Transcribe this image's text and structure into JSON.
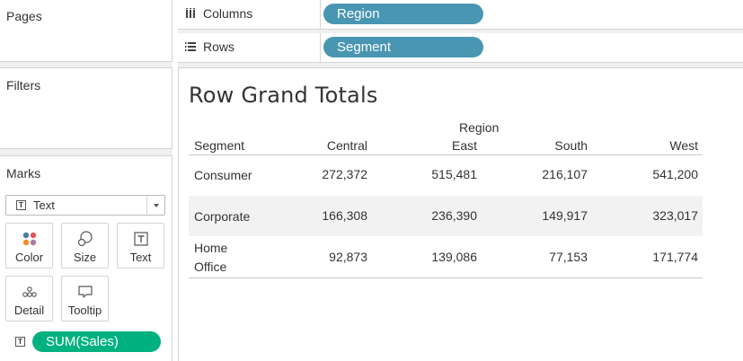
{
  "pages_panel": {
    "title": "Pages"
  },
  "filters_panel": {
    "title": "Filters"
  },
  "marks_panel": {
    "title": "Marks",
    "mark_type": "Text",
    "buttons": [
      {
        "label": "Color",
        "icon": "color-dots-icon"
      },
      {
        "label": "Size",
        "icon": "size-circles-icon"
      },
      {
        "label": "Text",
        "icon": "text-t-icon"
      },
      {
        "label": "Detail",
        "icon": "detail-dots-icon"
      },
      {
        "label": "Tooltip",
        "icon": "tooltip-bubble-icon"
      }
    ],
    "field_pill": "SUM(Sales)"
  },
  "shelves": {
    "columns": {
      "label": "Columns",
      "pill": "Region"
    },
    "rows": {
      "label": "Rows",
      "pill": "Segment"
    }
  },
  "view": {
    "title": "Row Grand Totals",
    "column_group_header": "Region",
    "row_header": "Segment",
    "columns": [
      "Central",
      "East",
      "South",
      "West"
    ],
    "rows": [
      {
        "segment_line1": "Consumer",
        "segment_line2": "",
        "values": [
          "272,372",
          "515,481",
          "216,107",
          "541,200"
        ]
      },
      {
        "segment_line1": "Corporate",
        "segment_line2": "",
        "values": [
          "166,308",
          "236,390",
          "149,917",
          "323,017"
        ]
      },
      {
        "segment_line1": "Home",
        "segment_line2": "Office",
        "values": [
          "92,873",
          "139,086",
          "77,153",
          "171,774"
        ]
      }
    ]
  },
  "colors": {
    "dimension_pill": "#4996b2",
    "measure_pill": "#00b180",
    "band": "#f2f2f2",
    "border": "#d4d4d4"
  }
}
